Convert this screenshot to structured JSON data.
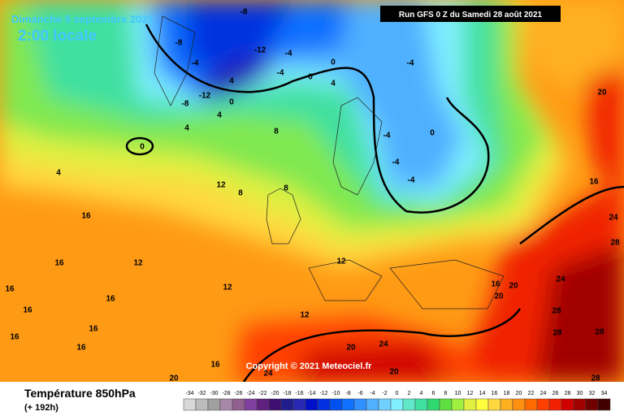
{
  "header": {
    "date": "Dimanche 5 septembre 2021",
    "time": "2:00 locale",
    "run": "Run GFS 0 Z du Samedi 28 août 2021"
  },
  "copyright": "Copyright © 2021 Meteociel.fr",
  "legend": {
    "title": "Température 850hPa",
    "lead": "(+ 192h)",
    "scale": [
      {
        "value": -34,
        "color": "#d8d8d8"
      },
      {
        "value": -32,
        "color": "#bcbcbc"
      },
      {
        "value": -30,
        "color": "#a0a0a0"
      },
      {
        "value": -28,
        "color": "#a888a8"
      },
      {
        "value": -26,
        "color": "#906090"
      },
      {
        "value": -24,
        "color": "#8040a0"
      },
      {
        "value": -22,
        "color": "#602080"
      },
      {
        "value": -20,
        "color": "#401070"
      },
      {
        "value": -18,
        "color": "#201c8c"
      },
      {
        "value": -16,
        "color": "#2828b4"
      },
      {
        "value": -14,
        "color": "#0010c8"
      },
      {
        "value": -12,
        "color": "#0030e0"
      },
      {
        "value": -10,
        "color": "#0050f0"
      },
      {
        "value": -8,
        "color": "#1070ff"
      },
      {
        "value": -6,
        "color": "#3090ff"
      },
      {
        "value": -4,
        "color": "#50b0ff"
      },
      {
        "value": -2,
        "color": "#70d0ff"
      },
      {
        "value": 0,
        "color": "#80f0ff"
      },
      {
        "value": 2,
        "color": "#60e8c8"
      },
      {
        "value": 4,
        "color": "#40e0a0"
      },
      {
        "value": 6,
        "color": "#30d870"
      },
      {
        "value": 8,
        "color": "#60e040"
      },
      {
        "value": 10,
        "color": "#a0f040"
      },
      {
        "value": 12,
        "color": "#e0f040"
      },
      {
        "value": 14,
        "color": "#ffff40"
      },
      {
        "value": 16,
        "color": "#ffd840"
      },
      {
        "value": 18,
        "color": "#ffb020"
      },
      {
        "value": 20,
        "color": "#ff9010"
      },
      {
        "value": 22,
        "color": "#ff6a00"
      },
      {
        "value": 24,
        "color": "#ff4000"
      },
      {
        "value": 26,
        "color": "#f02000"
      },
      {
        "value": 28,
        "color": "#d00000"
      },
      {
        "value": 30,
        "color": "#a00000"
      },
      {
        "value": 32,
        "color": "#700000"
      },
      {
        "value": 34,
        "color": "#400000"
      }
    ]
  },
  "map_labels": [
    "-8",
    "-12",
    "-8",
    "-4",
    "-12",
    "-4",
    "-8",
    "-4",
    "4",
    "0",
    "4",
    "0",
    "-4",
    "0",
    "4",
    "8",
    "4",
    "0",
    "4",
    "-4",
    "-4",
    "0",
    "-4",
    "12",
    "8",
    "16",
    "12",
    "16",
    "12",
    "16",
    "12",
    "16",
    "16",
    "16",
    "16",
    "16",
    "20",
    "16",
    "20",
    "12",
    "8",
    "16",
    "20",
    "24",
    "28",
    "28",
    "28",
    "28",
    "24",
    "20",
    "24",
    "16",
    "24",
    "28",
    "20",
    "20"
  ]
}
